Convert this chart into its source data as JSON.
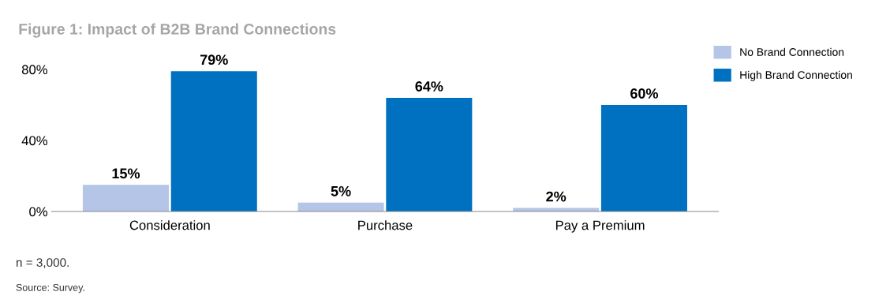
{
  "chart_data": {
    "type": "bar",
    "title": "Figure 1: Impact of B2B Brand Connections",
    "categories": [
      "Consideration",
      "Purchase",
      "Pay a Premium"
    ],
    "series": [
      {
        "name": "No Brand Connection",
        "color": "#b4c5e8",
        "values": [
          15,
          5,
          2
        ],
        "value_labels": [
          "15%",
          "5%",
          "2%"
        ]
      },
      {
        "name": "High Brand Connection",
        "color": "#0070c0",
        "values": [
          79,
          64,
          60
        ],
        "value_labels": [
          "79%",
          "64%",
          "60%"
        ]
      }
    ],
    "ylim": [
      0,
      80
    ],
    "yticks": [
      {
        "value": 0,
        "label": "0%"
      },
      {
        "value": 40,
        "label": "40%"
      },
      {
        "value": 80,
        "label": "80%"
      }
    ],
    "grid": false,
    "legend": "top right",
    "annotations": [
      "n = 3,000.",
      "Source: Survey."
    ]
  }
}
